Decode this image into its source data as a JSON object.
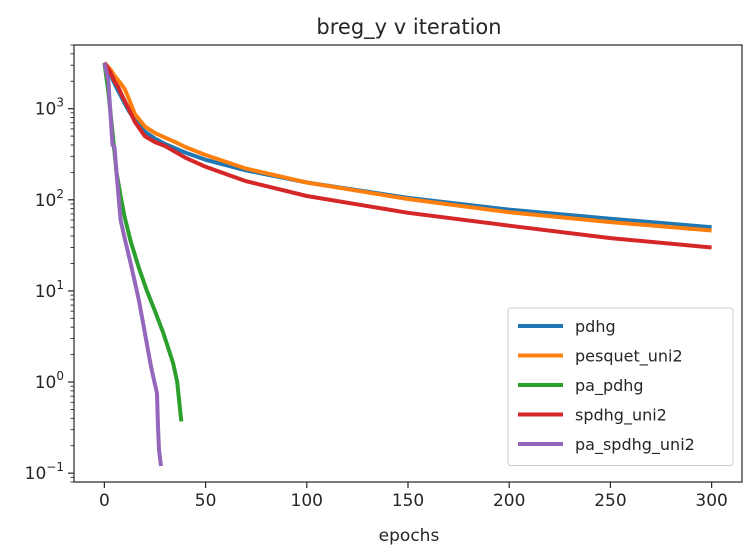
{
  "chart_data": {
    "type": "line",
    "title": "breg_y v iteration",
    "xlabel": "epochs",
    "ylabel": "",
    "xscale": "linear",
    "yscale": "log",
    "xlim": [
      -15,
      315
    ],
    "ylim": [
      0.08,
      5000
    ],
    "xticks": [
      0,
      50,
      100,
      150,
      200,
      250,
      300
    ],
    "xtick_labels": [
      "0",
      "50",
      "100",
      "150",
      "200",
      "250",
      "300"
    ],
    "yticks": [
      {
        "value": 1000,
        "base": "10",
        "exp": "3"
      },
      {
        "value": 100,
        "base": "10",
        "exp": "2"
      },
      {
        "value": 10,
        "base": "10",
        "exp": "1"
      },
      {
        "value": 1,
        "base": "10",
        "exp": "0"
      },
      {
        "value": 0.1,
        "base": "10",
        "exp": "−1"
      }
    ],
    "grid": false,
    "legend_position": "lower-right",
    "series": [
      {
        "name": "pdhg",
        "color": "#1f77b4",
        "x": [
          0,
          2,
          4,
          6,
          8,
          10,
          12,
          15,
          20,
          25,
          30,
          40,
          50,
          70,
          100,
          150,
          200,
          250,
          300
        ],
        "y": [
          3200,
          2700,
          2100,
          1700,
          1400,
          1150,
          950,
          750,
          560,
          470,
          410,
          330,
          275,
          210,
          155,
          105,
          78,
          62,
          50
        ]
      },
      {
        "name": "pesquet_uni2",
        "color": "#ff7f0e",
        "x": [
          0,
          3,
          5,
          8,
          10,
          12,
          15,
          20,
          25,
          30,
          35,
          40,
          50,
          70,
          100,
          150,
          200,
          250,
          300
        ],
        "y": [
          3200,
          2700,
          2300,
          1900,
          1650,
          1300,
          880,
          640,
          540,
          480,
          430,
          380,
          310,
          220,
          155,
          102,
          73,
          57,
          46
        ]
      },
      {
        "name": "pa_pdhg",
        "color": "#2ca02c",
        "x": [
          0,
          2,
          4,
          6,
          8,
          10,
          13,
          17,
          21,
          25,
          29,
          32,
          34,
          36,
          37,
          38
        ],
        "y": [
          3200,
          1500,
          550,
          200,
          110,
          65,
          35,
          18,
          10,
          6,
          3.5,
          2.2,
          1.6,
          1.0,
          0.6,
          0.37
        ]
      },
      {
        "name": "spdhg_uni2",
        "color": "#d62728",
        "x": [
          0,
          3,
          5,
          7,
          9,
          12,
          15,
          20,
          25,
          30,
          40,
          50,
          70,
          100,
          150,
          200,
          250,
          300
        ],
        "y": [
          3200,
          2500,
          2000,
          1700,
          1350,
          1000,
          720,
          500,
          430,
          390,
          290,
          230,
          160,
          110,
          72,
          52,
          38,
          30
        ]
      },
      {
        "name": "pa_spdhg_uni2",
        "color": "#9467bd",
        "x": [
          0,
          2,
          3,
          4,
          5,
          6,
          7,
          8,
          9,
          10,
          13,
          17,
          20,
          23,
          26,
          26.5,
          27,
          28
        ],
        "y": [
          3200,
          2000,
          900,
          400,
          380,
          200,
          110,
          60,
          48,
          38,
          20,
          8,
          3.5,
          1.5,
          0.75,
          0.32,
          0.18,
          0.12
        ]
      }
    ]
  }
}
